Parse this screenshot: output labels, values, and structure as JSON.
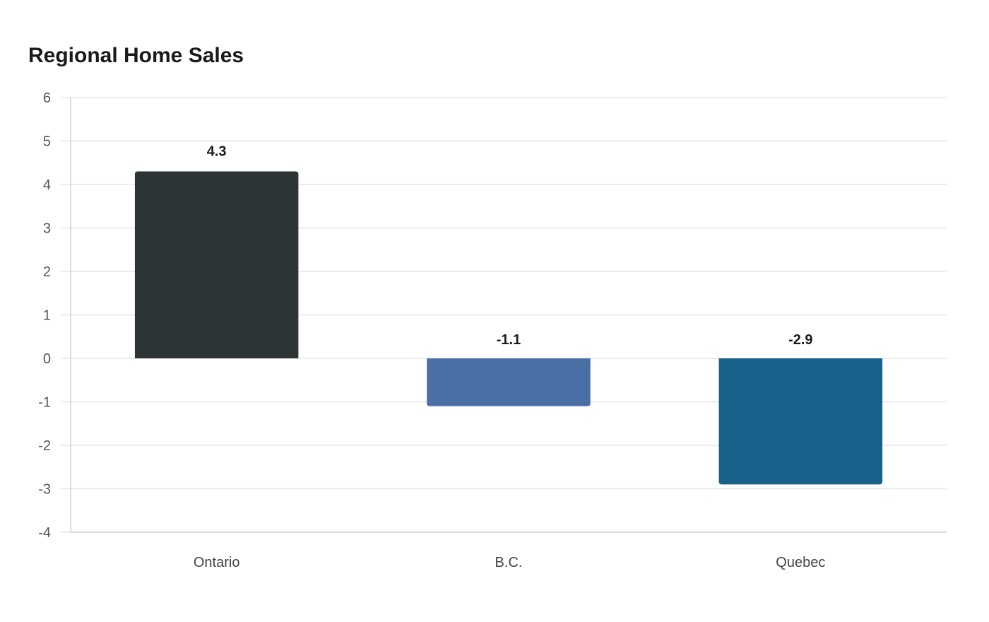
{
  "chart_data": {
    "type": "bar",
    "title": "Regional Home Sales",
    "categories": [
      "Ontario",
      "B.C.",
      "Quebec"
    ],
    "values": [
      4.3,
      -1.1,
      -2.9
    ],
    "data_labels": [
      "4.3",
      "-1.1",
      "-2.9"
    ],
    "colors": [
      "#2d3436",
      "#4a6fa5",
      "#17628a"
    ],
    "yticks": [
      6,
      5,
      4,
      3,
      2,
      1,
      0,
      -1,
      -2,
      -3,
      -4
    ],
    "ylim": [
      -4,
      6
    ],
    "grid": true,
    "legend": "none"
  }
}
